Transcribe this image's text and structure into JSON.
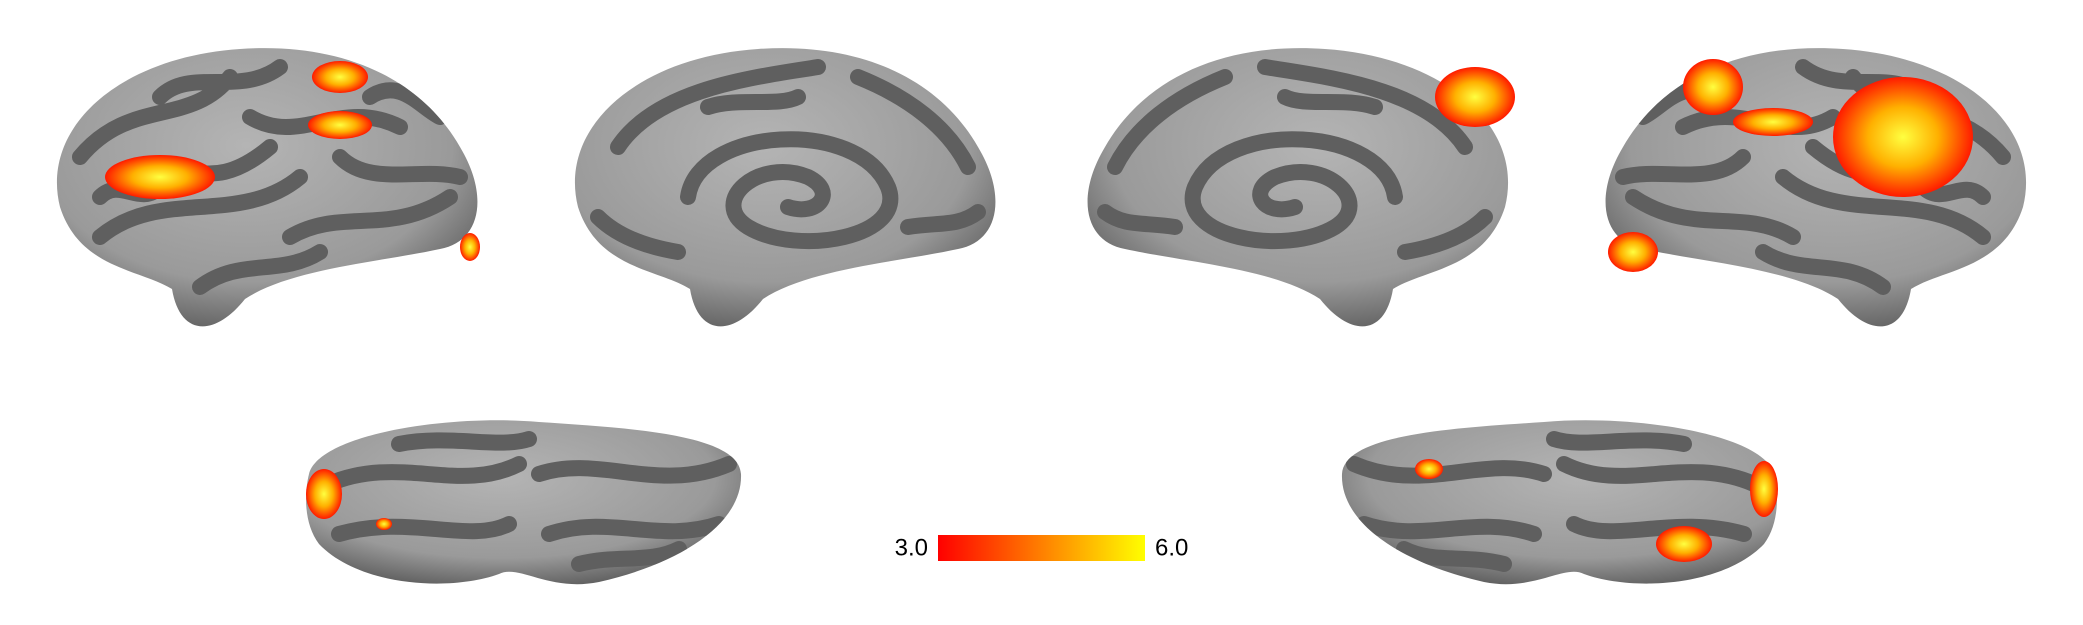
{
  "colorbar": {
    "ticks": [
      {
        "value": 3,
        "label": "3.0"
      },
      {
        "value": 6,
        "label": "6.0"
      }
    ],
    "colors": [
      "#ff0000",
      "#ffff00"
    ]
  }
}
